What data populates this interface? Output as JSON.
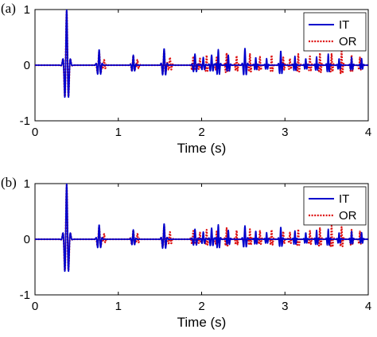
{
  "colors": {
    "it": "#0000cc",
    "or": "#dd1111",
    "axis": "#000000",
    "background": "#ffffff"
  },
  "chart_data": [
    {
      "type": "line",
      "panel_label": "(a)",
      "xlabel": "Time (s)",
      "ylabel": "",
      "xlim": [
        0,
        4
      ],
      "ylim": [
        -1,
        1
      ],
      "xticks": [
        "0",
        "1",
        "2",
        "3",
        "4"
      ],
      "yticks": [
        "-1",
        "0",
        "1"
      ],
      "legend_position": "top-right",
      "grid": false,
      "series": [
        {
          "name": "IT",
          "color": "#0000cc",
          "style": "solid",
          "events": [
            [
              0.38,
              1.0,
              0.022
            ],
            [
              0.77,
              0.28,
              0.018
            ],
            [
              1.18,
              0.18,
              0.016
            ],
            [
              1.55,
              0.3,
              0.018
            ],
            [
              1.92,
              0.2,
              0.018
            ],
            [
              2.02,
              0.14,
              0.016
            ],
            [
              2.12,
              0.18,
              0.016
            ],
            [
              2.2,
              0.28,
              0.014
            ],
            [
              2.32,
              0.18,
              0.014
            ],
            [
              2.52,
              0.3,
              0.016
            ],
            [
              2.65,
              0.14,
              0.012
            ],
            [
              2.78,
              0.12,
              0.012
            ],
            [
              2.95,
              0.26,
              0.014
            ],
            [
              3.12,
              0.16,
              0.012
            ],
            [
              3.25,
              0.12,
              0.012
            ],
            [
              3.38,
              0.15,
              0.012
            ],
            [
              3.52,
              0.2,
              0.012
            ],
            [
              3.65,
              0.12,
              0.012
            ],
            [
              3.8,
              0.14,
              0.012
            ],
            [
              3.92,
              0.12,
              0.012
            ]
          ]
        },
        {
          "name": "OR",
          "color": "#dd1111",
          "style": "dotted",
          "events": [
            [
              0.38,
              0.98,
              0.022
            ],
            [
              0.77,
              0.24,
              0.02
            ],
            [
              0.83,
              0.1,
              0.014
            ],
            [
              1.18,
              0.17,
              0.018
            ],
            [
              1.23,
              0.1,
              0.014
            ],
            [
              1.55,
              0.26,
              0.018
            ],
            [
              1.62,
              0.14,
              0.016
            ],
            [
              1.9,
              0.16,
              0.016
            ],
            [
              1.98,
              0.12,
              0.014
            ],
            [
              2.06,
              0.18,
              0.012
            ],
            [
              2.18,
              0.14,
              0.012
            ],
            [
              2.3,
              0.22,
              0.012
            ],
            [
              2.42,
              0.17,
              0.012
            ],
            [
              2.58,
              0.2,
              0.012
            ],
            [
              2.7,
              0.15,
              0.012
            ],
            [
              2.84,
              0.18,
              0.012
            ],
            [
              2.98,
              0.14,
              0.012
            ],
            [
              3.06,
              0.12,
              0.012
            ],
            [
              3.16,
              0.2,
              0.012
            ],
            [
              3.3,
              0.16,
              0.012
            ],
            [
              3.42,
              0.22,
              0.012
            ],
            [
              3.56,
              0.2,
              0.012
            ],
            [
              3.68,
              0.25,
              0.012
            ],
            [
              3.8,
              0.18,
              0.012
            ],
            [
              3.9,
              0.14,
              0.012
            ]
          ]
        }
      ]
    },
    {
      "type": "line",
      "panel_label": "(b)",
      "xlabel": "Time (s)",
      "ylabel": "",
      "xlim": [
        0,
        4
      ],
      "ylim": [
        -1,
        1
      ],
      "xticks": [
        "0",
        "1",
        "2",
        "3",
        "4"
      ],
      "yticks": [
        "-1",
        "0",
        "1"
      ],
      "legend_position": "top-right",
      "grid": false,
      "series": [
        {
          "name": "IT",
          "color": "#0000cc",
          "style": "solid",
          "events": [
            [
              0.38,
              1.0,
              0.022
            ],
            [
              0.77,
              0.26,
              0.018
            ],
            [
              1.18,
              0.17,
              0.016
            ],
            [
              1.55,
              0.28,
              0.018
            ],
            [
              1.92,
              0.18,
              0.018
            ],
            [
              2.02,
              0.13,
              0.016
            ],
            [
              2.12,
              0.2,
              0.016
            ],
            [
              2.2,
              0.26,
              0.014
            ],
            [
              2.32,
              0.16,
              0.014
            ],
            [
              2.52,
              0.24,
              0.016
            ],
            [
              2.65,
              0.15,
              0.012
            ],
            [
              2.78,
              0.12,
              0.012
            ],
            [
              2.95,
              0.22,
              0.014
            ],
            [
              3.12,
              0.15,
              0.012
            ],
            [
              3.25,
              0.12,
              0.012
            ],
            [
              3.38,
              0.16,
              0.012
            ],
            [
              3.52,
              0.18,
              0.012
            ],
            [
              3.65,
              0.12,
              0.012
            ],
            [
              3.8,
              0.14,
              0.012
            ],
            [
              3.92,
              0.12,
              0.012
            ]
          ]
        },
        {
          "name": "OR",
          "color": "#dd1111",
          "style": "dotted",
          "events": [
            [
              0.38,
              0.97,
              0.022
            ],
            [
              0.77,
              0.22,
              0.02
            ],
            [
              0.83,
              0.1,
              0.014
            ],
            [
              1.18,
              0.16,
              0.018
            ],
            [
              1.23,
              0.1,
              0.014
            ],
            [
              1.55,
              0.24,
              0.018
            ],
            [
              1.62,
              0.13,
              0.016
            ],
            [
              1.9,
              0.15,
              0.016
            ],
            [
              1.98,
              0.12,
              0.014
            ],
            [
              2.06,
              0.17,
              0.012
            ],
            [
              2.18,
              0.14,
              0.012
            ],
            [
              2.3,
              0.2,
              0.012
            ],
            [
              2.42,
              0.16,
              0.012
            ],
            [
              2.58,
              0.18,
              0.012
            ],
            [
              2.7,
              0.15,
              0.012
            ],
            [
              2.84,
              0.17,
              0.012
            ],
            [
              2.98,
              0.14,
              0.012
            ],
            [
              3.06,
              0.12,
              0.012
            ],
            [
              3.16,
              0.18,
              0.012
            ],
            [
              3.3,
              0.15,
              0.012
            ],
            [
              3.42,
              0.2,
              0.012
            ],
            [
              3.56,
              0.24,
              0.012
            ],
            [
              3.68,
              0.22,
              0.012
            ],
            [
              3.8,
              0.17,
              0.012
            ],
            [
              3.9,
              0.14,
              0.012
            ]
          ]
        }
      ]
    }
  ]
}
